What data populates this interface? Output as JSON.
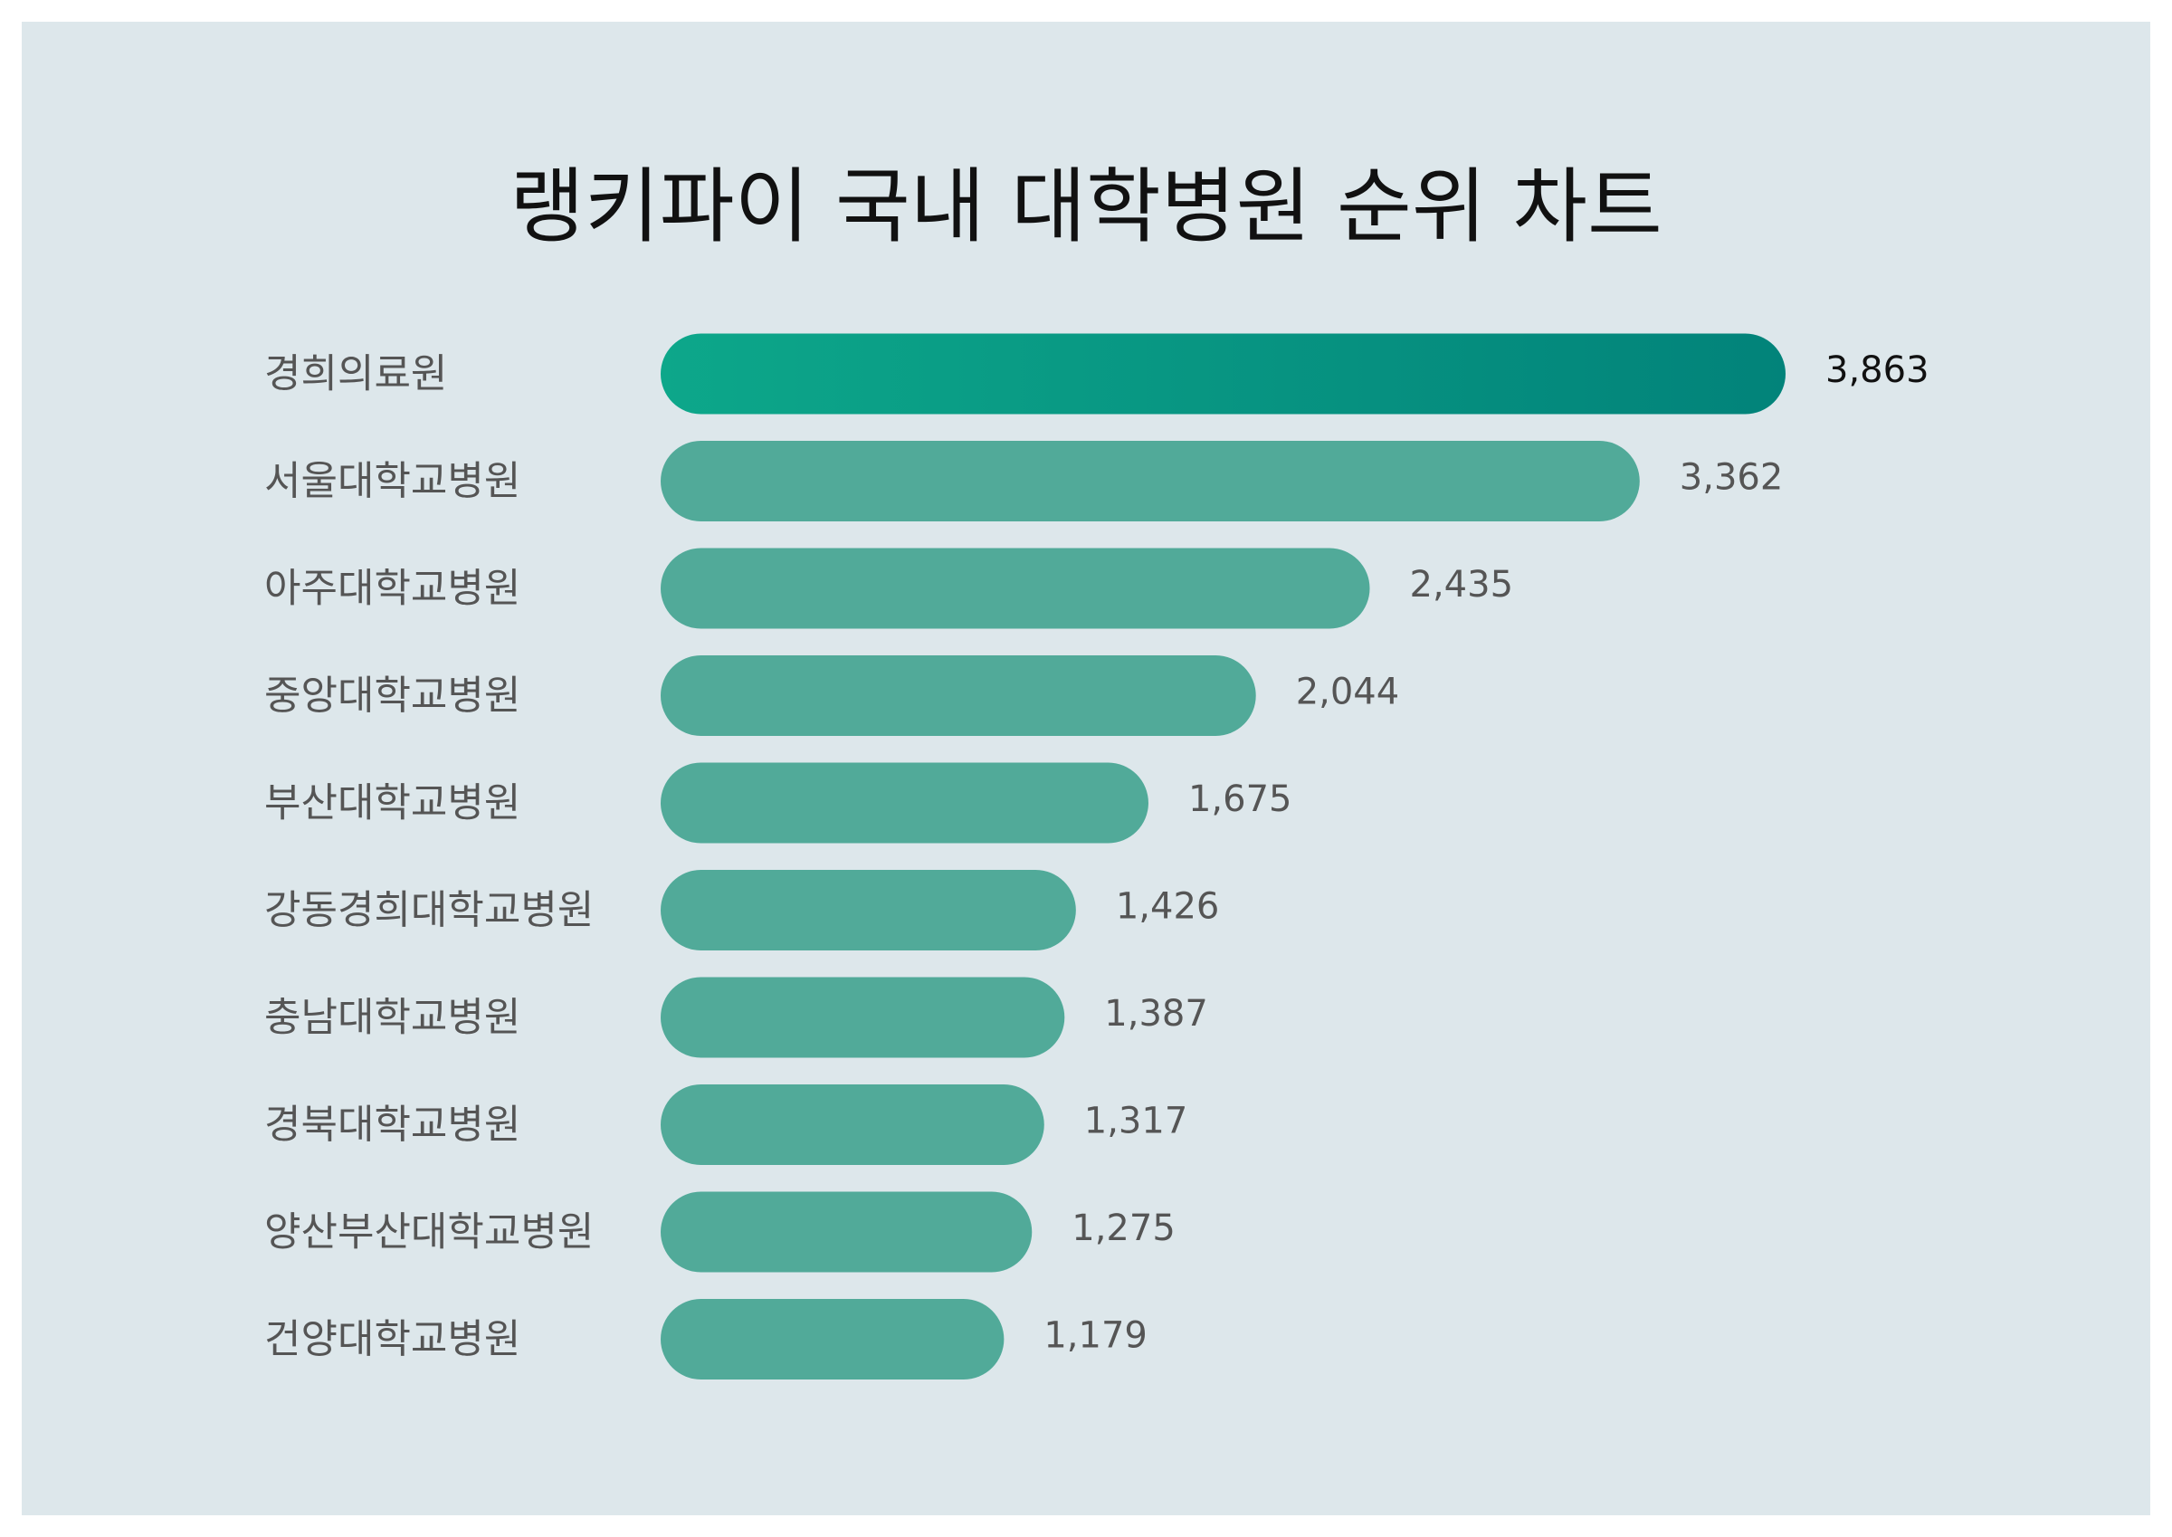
{
  "colors": {
    "background": "#dde7eb",
    "page": "#ffffff",
    "bar": "#51aa99",
    "highlight_start": "#0da78a",
    "highlight_end": "#02837a",
    "label": "#555555",
    "highlight_value": "#111111"
  },
  "chart_data": {
    "type": "bar",
    "orientation": "horizontal",
    "title": "랭키파이 국내 대학병원 순위 차트",
    "categories": [
      "경희의료원",
      "서울대학교병원",
      "아주대학교병원",
      "중앙대학교병원",
      "부산대학교병원",
      "강동경희대학교병원",
      "충남대학교병원",
      "경북대학교병원",
      "양산부산대학교병원",
      "건양대학교병원"
    ],
    "values": [
      3863,
      3362,
      2435,
      2044,
      1675,
      1426,
      1387,
      1317,
      1275,
      1179
    ],
    "value_labels": [
      "3,863",
      "3,362",
      "2,435",
      "2,044",
      "1,675",
      "1,426",
      "1,387",
      "1,317",
      "1,275",
      "1,179"
    ],
    "highlight_index": 0,
    "xlim": [
      0,
      3863
    ],
    "grid": false,
    "legend": "none"
  }
}
